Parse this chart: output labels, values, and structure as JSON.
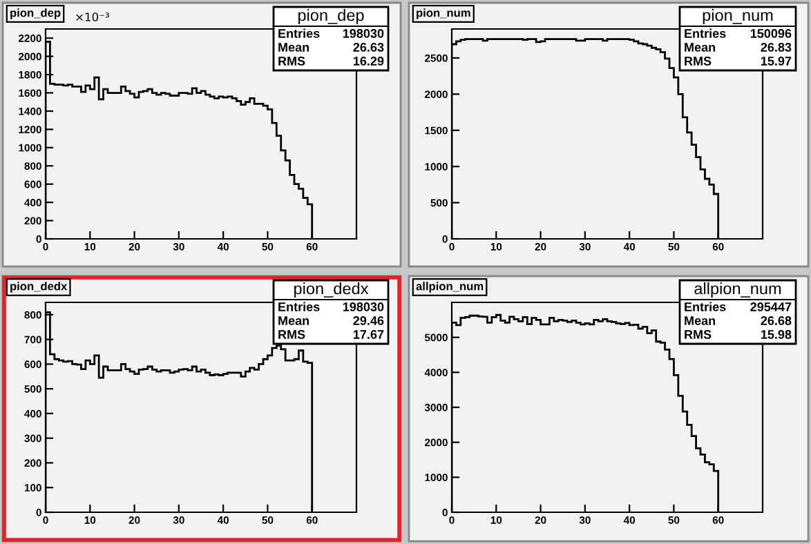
{
  "chart_data": [
    {
      "type": "histogram",
      "title": "pion_dep",
      "bins": [
        0,
        1,
        2,
        3,
        4,
        5,
        6,
        7,
        8,
        9,
        10,
        11,
        12,
        13,
        14,
        15,
        16,
        17,
        18,
        19,
        20,
        21,
        22,
        23,
        24,
        25,
        26,
        27,
        28,
        29,
        30,
        31,
        32,
        33,
        34,
        35,
        36,
        37,
        38,
        39,
        40,
        41,
        42,
        43,
        44,
        45,
        46,
        47,
        48,
        49,
        50,
        51,
        52,
        53,
        54,
        55,
        56,
        57,
        58,
        59,
        60
      ],
      "values": [
        2160,
        1700,
        1690,
        1690,
        1680,
        1690,
        1670,
        1670,
        1610,
        1680,
        1640,
        1770,
        1530,
        1640,
        1600,
        1600,
        1600,
        1670,
        1620,
        1590,
        1550,
        1610,
        1620,
        1640,
        1600,
        1580,
        1600,
        1590,
        1570,
        1570,
        1600,
        1600,
        1590,
        1650,
        1600,
        1620,
        1580,
        1560,
        1540,
        1560,
        1550,
        1560,
        1540,
        1510,
        1470,
        1500,
        1540,
        1480,
        1480,
        1460,
        1420,
        1270,
        1130,
        970,
        860,
        700,
        600,
        550,
        450,
        380
      ],
      "color": "#000000",
      "xlim": [
        0,
        70
      ],
      "ylim": [
        0,
        2300
      ],
      "xticks": [
        0,
        10,
        20,
        30,
        40,
        50,
        60
      ],
      "yticks": [
        0,
        200,
        400,
        600,
        800,
        1000,
        1200,
        1400,
        1600,
        1800,
        2000,
        2200
      ],
      "grid": false,
      "legend": false,
      "annotations": [
        "pion_dep",
        "Entries",
        "198030",
        "Mean",
        "26.63",
        "RMS",
        "16.29",
        "×10⁻³"
      ]
    },
    {
      "type": "histogram",
      "title": "pion_num",
      "bins": [
        0,
        1,
        2,
        3,
        4,
        5,
        6,
        7,
        8,
        9,
        10,
        11,
        12,
        13,
        14,
        15,
        16,
        17,
        18,
        19,
        20,
        21,
        22,
        23,
        24,
        25,
        26,
        27,
        28,
        29,
        30,
        31,
        32,
        33,
        34,
        35,
        36,
        37,
        38,
        39,
        40,
        41,
        42,
        43,
        44,
        45,
        46,
        47,
        48,
        49,
        50,
        51,
        52,
        53,
        54,
        55,
        56,
        57,
        58,
        59,
        60
      ],
      "values": [
        2690,
        2730,
        2750,
        2760,
        2760,
        2760,
        2760,
        2740,
        2760,
        2760,
        2760,
        2760,
        2760,
        2760,
        2760,
        2760,
        2750,
        2760,
        2760,
        2720,
        2730,
        2760,
        2760,
        2760,
        2760,
        2760,
        2760,
        2760,
        2740,
        2740,
        2760,
        2760,
        2760,
        2760,
        2740,
        2760,
        2760,
        2760,
        2760,
        2760,
        2750,
        2730,
        2700,
        2690,
        2670,
        2640,
        2620,
        2580,
        2490,
        2360,
        2230,
        2000,
        1680,
        1470,
        1300,
        1130,
        960,
        830,
        750,
        620
      ],
      "color": "#000000",
      "xlim": [
        0,
        70
      ],
      "ylim": [
        0,
        2900
      ],
      "xticks": [
        0,
        10,
        20,
        30,
        40,
        50,
        60
      ],
      "yticks": [
        0,
        500,
        1000,
        1500,
        2000,
        2500
      ],
      "grid": false,
      "legend": false,
      "annotations": [
        "pion_num",
        "Entries",
        "150096",
        "Mean",
        "26.83",
        "RMS",
        "15.97"
      ]
    },
    {
      "type": "histogram",
      "title": "pion_dedx",
      "bins": [
        0,
        1,
        2,
        3,
        4,
        5,
        6,
        7,
        8,
        9,
        10,
        11,
        12,
        13,
        14,
        15,
        16,
        17,
        18,
        19,
        20,
        21,
        22,
        23,
        24,
        25,
        26,
        27,
        28,
        29,
        30,
        31,
        32,
        33,
        34,
        35,
        36,
        37,
        38,
        39,
        40,
        41,
        42,
        43,
        44,
        45,
        46,
        47,
        48,
        49,
        50,
        51,
        52,
        53,
        54,
        55,
        56,
        57,
        58,
        59,
        60
      ],
      "values": [
        810,
        640,
        620,
        615,
        610,
        612,
        600,
        598,
        580,
        615,
        600,
        635,
        545,
        590,
        575,
        575,
        575,
        600,
        580,
        570,
        560,
        578,
        580,
        590,
        578,
        570,
        575,
        575,
        565,
        570,
        578,
        580,
        575,
        590,
        570,
        578,
        565,
        555,
        558,
        555,
        560,
        565,
        565,
        565,
        550,
        570,
        585,
        578,
        600,
        620,
        635,
        665,
        675,
        660,
        615,
        615,
        620,
        655,
        610,
        605
      ],
      "color": "#000000",
      "xlim": [
        0,
        70
      ],
      "ylim": [
        0,
        850
      ],
      "xticks": [
        0,
        10,
        20,
        30,
        40,
        50,
        60
      ],
      "yticks": [
        0,
        100,
        200,
        300,
        400,
        500,
        600,
        700,
        800
      ],
      "grid": false,
      "legend": false,
      "annotations": [
        "pion_dedx",
        "Entries",
        "198030",
        "Mean",
        "29.46",
        "RMS",
        "17.67"
      ]
    },
    {
      "type": "histogram",
      "title": "allpion_num",
      "bins": [
        0,
        1,
        2,
        3,
        4,
        5,
        6,
        7,
        8,
        9,
        10,
        11,
        12,
        13,
        14,
        15,
        16,
        17,
        18,
        19,
        20,
        21,
        22,
        23,
        24,
        25,
        26,
        27,
        28,
        29,
        30,
        31,
        32,
        33,
        34,
        35,
        36,
        37,
        38,
        39,
        40,
        41,
        42,
        43,
        44,
        45,
        46,
        47,
        48,
        49,
        50,
        51,
        52,
        53,
        54,
        55,
        56,
        57,
        58,
        59,
        60
      ],
      "values": [
        5420,
        5350,
        5560,
        5580,
        5620,
        5620,
        5600,
        5590,
        5420,
        5580,
        5640,
        5480,
        5420,
        5590,
        5520,
        5460,
        5580,
        5380,
        5560,
        5500,
        5370,
        5370,
        5560,
        5460,
        5500,
        5480,
        5440,
        5480,
        5420,
        5370,
        5400,
        5370,
        5500,
        5460,
        5520,
        5460,
        5440,
        5400,
        5380,
        5410,
        5350,
        5360,
        5250,
        5300,
        5120,
        5200,
        4880,
        4850,
        4650,
        4380,
        3920,
        3330,
        2880,
        2500,
        2180,
        1830,
        1650,
        1430,
        1370,
        1180
      ],
      "color": "#000000",
      "xlim": [
        0,
        70
      ],
      "ylim": [
        0,
        6000
      ],
      "xticks": [
        0,
        10,
        20,
        30,
        40,
        50,
        60
      ],
      "yticks": [
        0,
        1000,
        2000,
        3000,
        4000,
        5000
      ],
      "grid": false,
      "legend": false,
      "annotations": [
        "allpion_num",
        "Entries",
        "295447",
        "Mean",
        "26.68",
        "RMS",
        "15.98"
      ]
    }
  ]
}
